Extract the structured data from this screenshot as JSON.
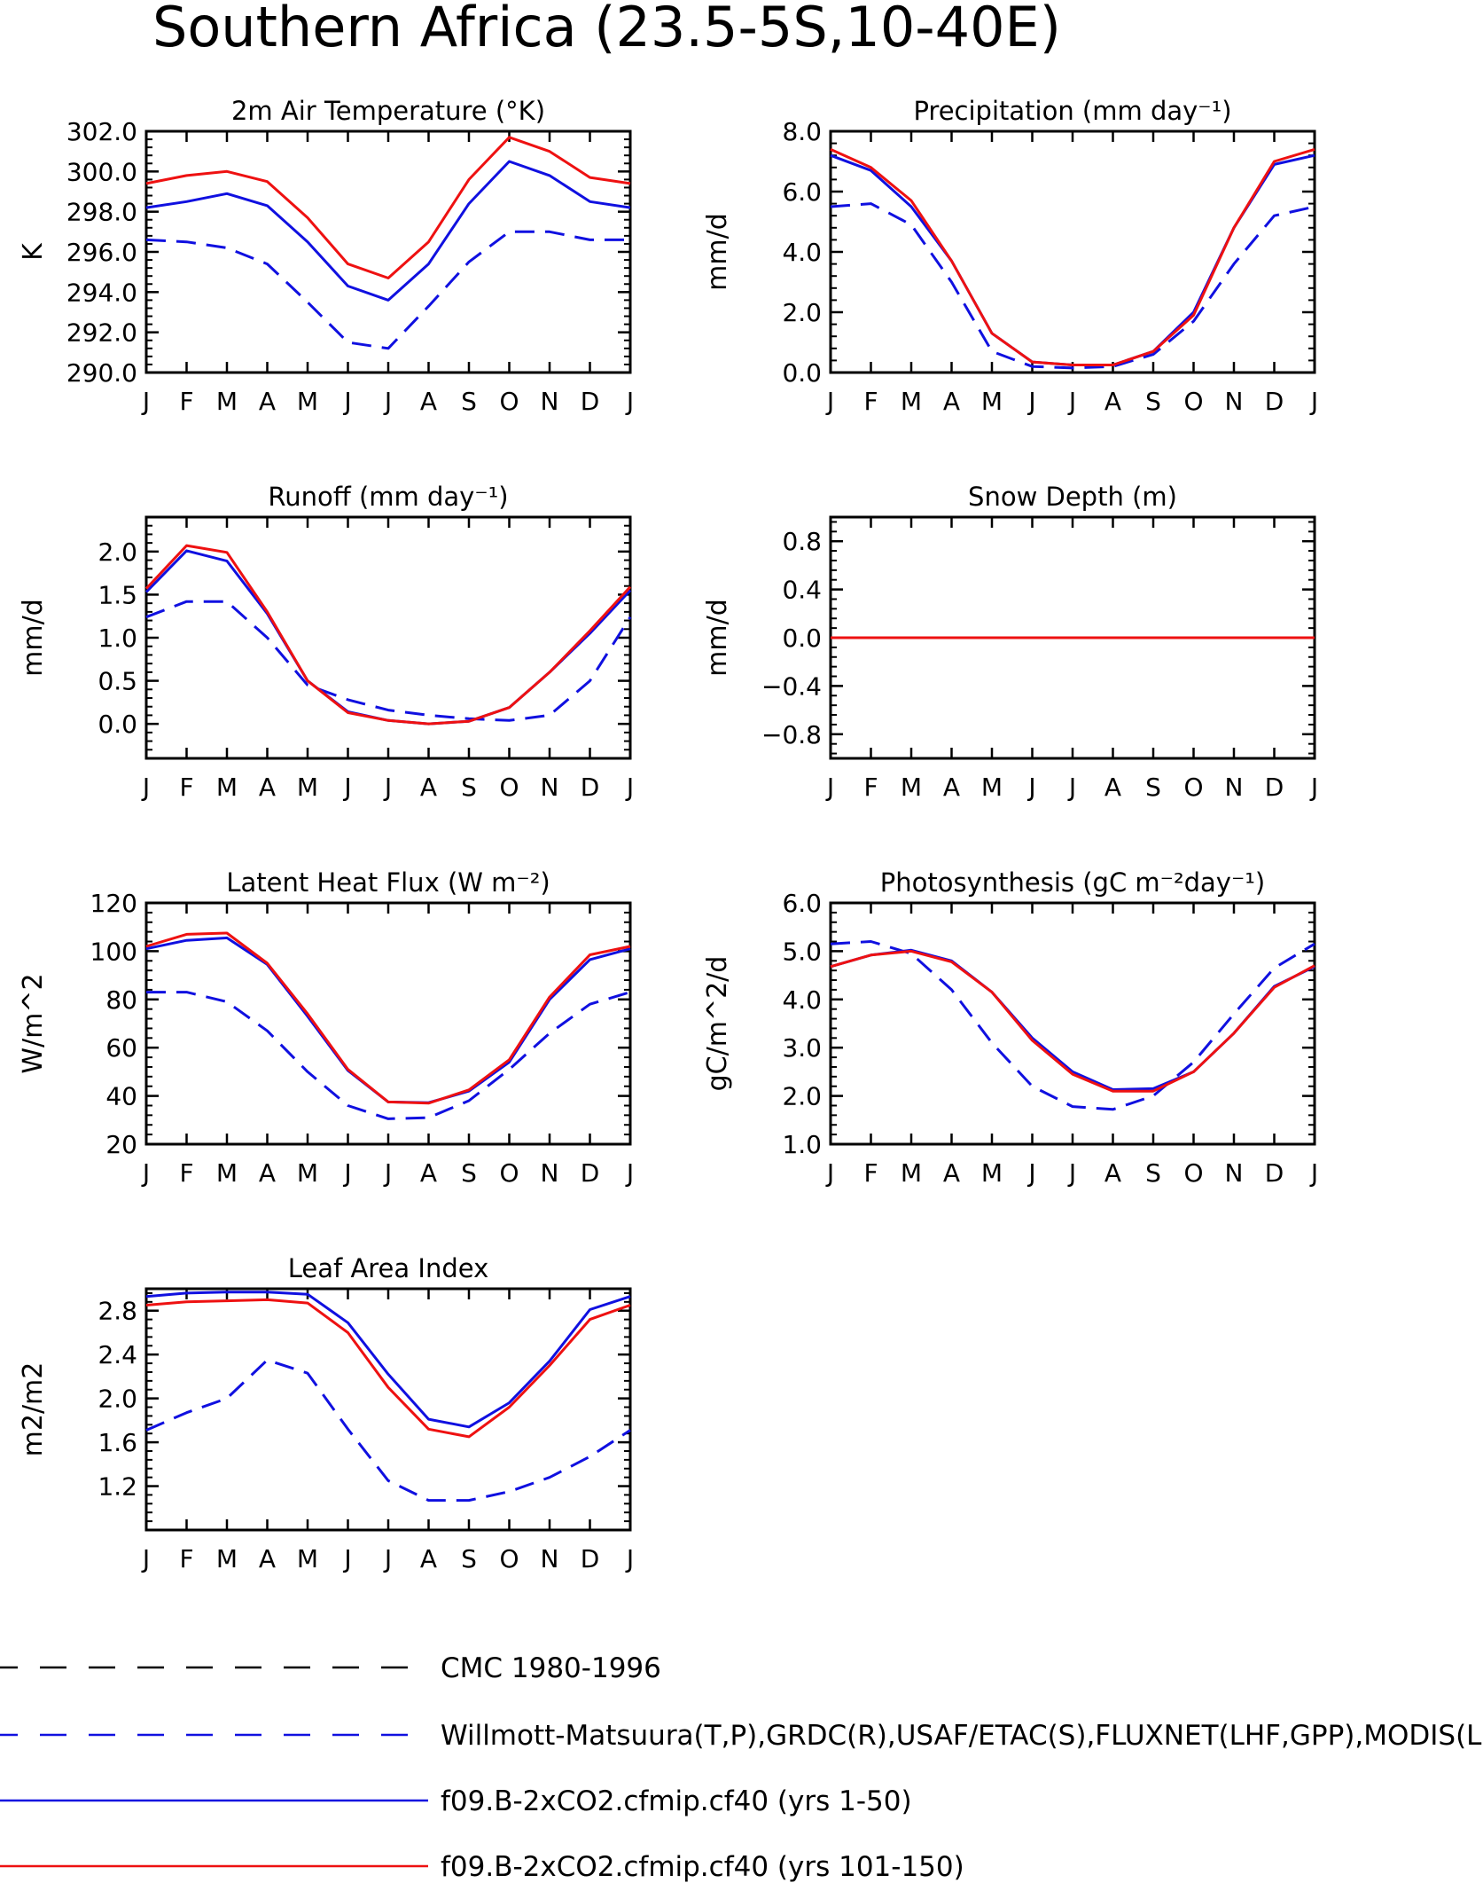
{
  "figure": {
    "title": "Southern Africa (23.5-5S,10-40E)"
  },
  "colors": {
    "obs1": "#000000",
    "obs2": "#1010e0",
    "run1": "#1010e0",
    "run2": "#ee1111"
  },
  "chart_data": [
    {
      "type": "line",
      "title": "2m Air Temperature (°K)",
      "ylabel": "K",
      "x": [
        "J",
        "F",
        "M",
        "A",
        "M",
        "J",
        "J",
        "A",
        "S",
        "O",
        "N",
        "D",
        "J"
      ],
      "ylim": [
        290,
        302
      ],
      "yticks": [
        290,
        292,
        294,
        296,
        298,
        300,
        302
      ],
      "ytick_labels": [
        "290.0",
        "292.0",
        "294.0",
        "296.0",
        "298.0",
        "300.0",
        "302.0"
      ],
      "series": [
        {
          "name": "Willmott-Matsuura(T,P),GRDC(R),USAF/ETAC(S),FLUXNET(LHF,GPP),MODIS(L",
          "style": "dashed",
          "color": "#1010e0",
          "values": [
            296.6,
            296.5,
            296.2,
            295.4,
            293.5,
            291.5,
            291.2,
            293.3,
            295.5,
            297.0,
            297.0,
            296.6,
            296.6
          ]
        },
        {
          "name": "f09.B-2xCO2.cfmip.cf40 (yrs 1-50)",
          "style": "solid",
          "color": "#1010e0",
          "values": [
            298.2,
            298.5,
            298.9,
            298.3,
            296.5,
            294.3,
            293.6,
            295.4,
            298.4,
            300.5,
            299.8,
            298.5,
            298.2
          ]
        },
        {
          "name": "f09.B-2xCO2.cfmip.cf40 (yrs 101-150)",
          "style": "solid",
          "color": "#ee1111",
          "values": [
            299.4,
            299.8,
            300.0,
            299.5,
            297.7,
            295.4,
            294.7,
            296.5,
            299.6,
            301.7,
            301.0,
            299.7,
            299.4
          ]
        }
      ]
    },
    {
      "type": "line",
      "title": "Precipitation (mm day⁻¹)",
      "ylabel": "mm/d",
      "x": [
        "J",
        "F",
        "M",
        "A",
        "M",
        "J",
        "J",
        "A",
        "S",
        "O",
        "N",
        "D",
        "J"
      ],
      "ylim": [
        0,
        8
      ],
      "yticks": [
        0,
        2,
        4,
        6,
        8
      ],
      "ytick_labels": [
        "0.0",
        "2.0",
        "4.0",
        "6.0",
        "8.0"
      ],
      "series": [
        {
          "name": "Willmott-Matsuura(T,P),GRDC(R),USAF/ETAC(S),FLUXNET(LHF,GPP),MODIS(L",
          "style": "dashed",
          "color": "#1010e0",
          "values": [
            5.5,
            5.6,
            4.9,
            3.0,
            0.7,
            0.2,
            0.15,
            0.2,
            0.6,
            1.7,
            3.6,
            5.2,
            5.5
          ]
        },
        {
          "name": "f09.B-2xCO2.cfmip.cf40 (yrs 1-50)",
          "style": "solid",
          "color": "#1010e0",
          "values": [
            7.2,
            6.7,
            5.5,
            3.7,
            1.3,
            0.35,
            0.25,
            0.25,
            0.7,
            2.0,
            4.8,
            6.9,
            7.2
          ]
        },
        {
          "name": "f09.B-2xCO2.cfmip.cf40 (yrs 101-150)",
          "style": "solid",
          "color": "#ee1111",
          "values": [
            7.4,
            6.8,
            5.7,
            3.7,
            1.3,
            0.35,
            0.25,
            0.25,
            0.7,
            1.9,
            4.8,
            7.0,
            7.4
          ]
        }
      ]
    },
    {
      "type": "line",
      "title": "Runoff (mm day⁻¹)",
      "ylabel": "mm/d",
      "x": [
        "J",
        "F",
        "M",
        "A",
        "M",
        "J",
        "J",
        "A",
        "S",
        "O",
        "N",
        "D",
        "J"
      ],
      "ylim": [
        -0.4,
        2.4
      ],
      "yticks": [
        0,
        0.5,
        1,
        1.5,
        2
      ],
      "ytick_labels": [
        "0.0",
        "0.5",
        "1.0",
        "1.5",
        "2.0"
      ],
      "series": [
        {
          "name": "Willmott-Matsuura(T,P),GRDC(R),USAF/ETAC(S),FLUXNET(LHF,GPP),MODIS(L",
          "style": "dashed",
          "color": "#1010e0",
          "values": [
            1.24,
            1.42,
            1.42,
            1.0,
            0.45,
            0.28,
            0.16,
            0.1,
            0.06,
            0.04,
            0.1,
            0.5,
            1.24
          ]
        },
        {
          "name": "f09.B-2xCO2.cfmip.cf40 (yrs 1-50)",
          "style": "solid",
          "color": "#1010e0",
          "values": [
            1.53,
            2.01,
            1.89,
            1.28,
            0.5,
            0.14,
            0.04,
            0.0,
            0.03,
            0.19,
            0.6,
            1.05,
            1.55
          ]
        },
        {
          "name": "f09.B-2xCO2.cfmip.cf40 (yrs 101-150)",
          "style": "solid",
          "color": "#ee1111",
          "values": [
            1.57,
            2.07,
            1.99,
            1.3,
            0.5,
            0.13,
            0.04,
            0.0,
            0.03,
            0.19,
            0.6,
            1.08,
            1.59
          ]
        }
      ]
    },
    {
      "type": "line",
      "title": "Snow Depth (m)",
      "ylabel": "mm/d",
      "x": [
        "J",
        "F",
        "M",
        "A",
        "M",
        "J",
        "J",
        "A",
        "S",
        "O",
        "N",
        "D",
        "J"
      ],
      "ylim": [
        -1.0,
        1.0
      ],
      "yticks": [
        -0.8,
        -0.4,
        0,
        0.4,
        0.8
      ],
      "ytick_labels": [
        "−0.8",
        "−0.4",
        "0.0",
        "0.4",
        "0.8"
      ],
      "series": [
        {
          "name": "Willmott-Matsuura(T,P),GRDC(R),USAF/ETAC(S),FLUXNET(LHF,GPP),MODIS(L",
          "style": "dashed",
          "color": "#1010e0",
          "values": [
            0,
            0,
            0,
            0,
            0,
            0,
            0,
            0,
            0,
            0,
            0,
            0,
            0
          ]
        },
        {
          "name": "f09.B-2xCO2.cfmip.cf40 (yrs 1-50)",
          "style": "solid",
          "color": "#1010e0",
          "values": [
            0,
            0,
            0,
            0,
            0,
            0,
            0,
            0,
            0,
            0,
            0,
            0,
            0
          ]
        },
        {
          "name": "f09.B-2xCO2.cfmip.cf40 (yrs 101-150)",
          "style": "solid",
          "color": "#ee1111",
          "values": [
            0,
            0,
            0,
            0,
            0,
            0,
            0,
            0,
            0,
            0,
            0,
            0,
            0
          ]
        }
      ]
    },
    {
      "type": "line",
      "title": "Latent Heat Flux (W m⁻²)",
      "ylabel": "W/m^2",
      "x": [
        "J",
        "F",
        "M",
        "A",
        "M",
        "J",
        "J",
        "A",
        "S",
        "O",
        "N",
        "D",
        "J"
      ],
      "ylim": [
        20,
        120
      ],
      "yticks": [
        20,
        40,
        60,
        80,
        100,
        120
      ],
      "ytick_labels": [
        "20",
        "40",
        "60",
        "80",
        "100",
        "120"
      ],
      "series": [
        {
          "name": "Willmott-Matsuura(T,P),GRDC(R),USAF/ETAC(S),FLUXNET(LHF,GPP),MODIS(L",
          "style": "dashed",
          "color": "#1010e0",
          "values": [
            83,
            83,
            79,
            67,
            50,
            36,
            30.5,
            31,
            38,
            51,
            66,
            78,
            83
          ]
        },
        {
          "name": "f09.B-2xCO2.cfmip.cf40 (yrs 1-50)",
          "style": "solid",
          "color": "#1010e0",
          "values": [
            101,
            104.5,
            105.5,
            94.5,
            73,
            50.5,
            37.5,
            37.2,
            42,
            54,
            80,
            96.5,
            101
          ]
        },
        {
          "name": "f09.B-2xCO2.cfmip.cf40 (yrs 101-150)",
          "style": "solid",
          "color": "#ee1111",
          "values": [
            102,
            107,
            107.5,
            95,
            74,
            51,
            37.5,
            37,
            42.5,
            55,
            81,
            98.5,
            102
          ]
        }
      ]
    },
    {
      "type": "line",
      "title": "Photosynthesis (gC m⁻²day⁻¹)",
      "ylabel": "gC/m^2/d",
      "x": [
        "J",
        "F",
        "M",
        "A",
        "M",
        "J",
        "J",
        "A",
        "S",
        "O",
        "N",
        "D",
        "J"
      ],
      "ylim": [
        1,
        6
      ],
      "yticks": [
        1,
        2,
        3,
        4,
        5,
        6
      ],
      "ytick_labels": [
        "1.0",
        "2.0",
        "3.0",
        "4.0",
        "5.0",
        "6.0"
      ],
      "series": [
        {
          "name": "Willmott-Matsuura(T,P),GRDC(R),USAF/ETAC(S),FLUXNET(LHF,GPP),MODIS(L",
          "style": "dashed",
          "color": "#1010e0",
          "values": [
            5.15,
            5.2,
            4.95,
            4.2,
            3.1,
            2.2,
            1.78,
            1.72,
            2.0,
            2.7,
            3.7,
            4.65,
            5.15
          ]
        },
        {
          "name": "f09.B-2xCO2.cfmip.cf40 (yrs 1-50)",
          "style": "solid",
          "color": "#1010e0",
          "values": [
            4.68,
            4.92,
            5.02,
            4.8,
            4.15,
            3.2,
            2.5,
            2.13,
            2.15,
            2.5,
            3.3,
            4.27,
            4.68
          ]
        },
        {
          "name": "f09.B-2xCO2.cfmip.cf40 (yrs 101-150)",
          "style": "solid",
          "color": "#ee1111",
          "values": [
            4.68,
            4.92,
            5.0,
            4.78,
            4.15,
            3.15,
            2.45,
            2.1,
            2.1,
            2.5,
            3.3,
            4.25,
            4.7
          ]
        }
      ]
    },
    {
      "type": "line",
      "title": "Leaf Area Index",
      "ylabel": "m2/m2",
      "x": [
        "J",
        "F",
        "M",
        "A",
        "M",
        "J",
        "J",
        "A",
        "S",
        "O",
        "N",
        "D",
        "J"
      ],
      "ylim": [
        0.8,
        3.0
      ],
      "yticks": [
        1.2,
        1.6,
        2.0,
        2.4,
        2.8
      ],
      "ytick_labels": [
        "1.2",
        "1.6",
        "2.0",
        "2.4",
        "2.8"
      ],
      "series": [
        {
          "name": "Willmott-Matsuura(T,P),GRDC(R),USAF/ETAC(S),FLUXNET(LHF,GPP),MODIS(L",
          "style": "dashed",
          "color": "#1010e0",
          "values": [
            1.71,
            1.87,
            2.0,
            2.35,
            2.23,
            1.72,
            1.25,
            1.07,
            1.07,
            1.15,
            1.28,
            1.47,
            1.71
          ]
        },
        {
          "name": "f09.B-2xCO2.cfmip.cf40 (yrs 1-50)",
          "style": "solid",
          "color": "#1010e0",
          "values": [
            2.93,
            2.96,
            2.97,
            2.97,
            2.95,
            2.69,
            2.22,
            1.81,
            1.74,
            1.96,
            2.34,
            2.81,
            2.93
          ]
        },
        {
          "name": "f09.B-2xCO2.cfmip.cf40 (yrs 101-150)",
          "style": "solid",
          "color": "#ee1111",
          "values": [
            2.85,
            2.88,
            2.89,
            2.9,
            2.87,
            2.6,
            2.1,
            1.72,
            1.65,
            1.92,
            2.3,
            2.72,
            2.85
          ]
        }
      ]
    }
  ],
  "legend": [
    {
      "label": "CMC 1980-1996",
      "style": "dashed",
      "color": "#000000"
    },
    {
      "label": "Willmott-Matsuura(T,P),GRDC(R),USAF/ETAC(S),FLUXNET(LHF,GPP),MODIS(L",
      "style": "dashed",
      "color": "#1010e0"
    },
    {
      "label": "f09.B-2xCO2.cfmip.cf40 (yrs 1-50)",
      "style": "solid",
      "color": "#1010e0"
    },
    {
      "label": "f09.B-2xCO2.cfmip.cf40 (yrs 101-150)",
      "style": "solid",
      "color": "#ee1111"
    }
  ]
}
